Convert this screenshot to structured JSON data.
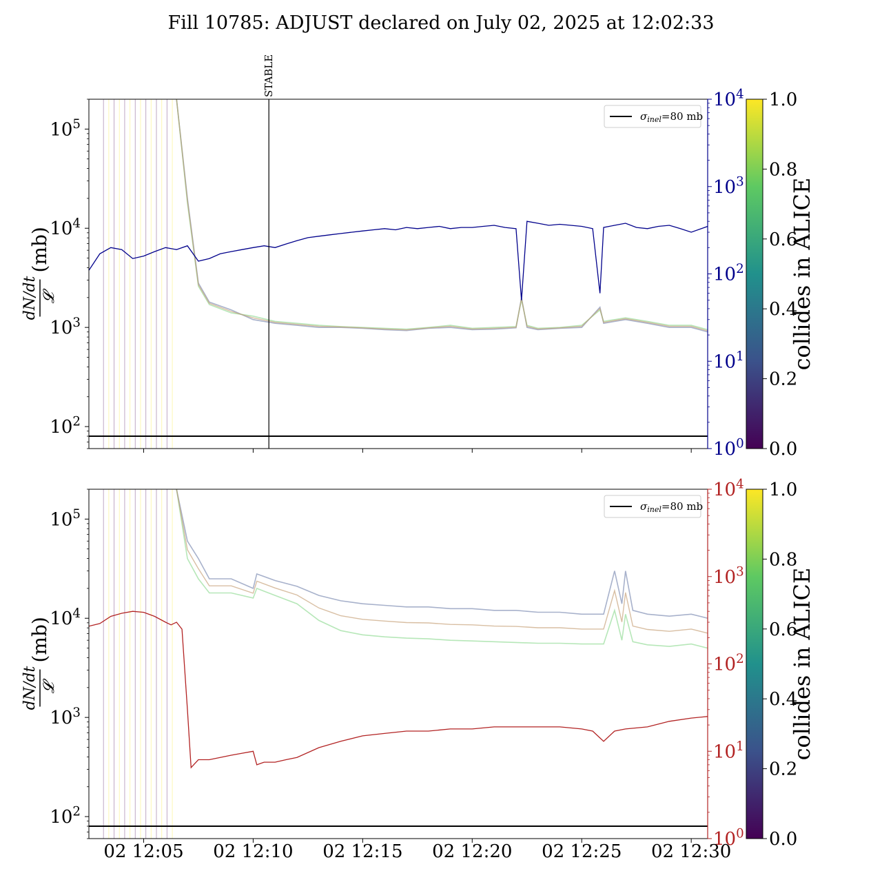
{
  "title": "Fill 10785: ADJUST declared on July 02, 2025 at 12:02:33",
  "colors": {
    "blue_series": "#00008b",
    "red_series": "#b22222",
    "reference_line": "#000000",
    "colormap": [
      "#440154",
      "#3b528b",
      "#21918c",
      "#5ec962",
      "#fde725"
    ]
  },
  "chart_data": [
    {
      "type": "line",
      "xlabel": "",
      "ylabel_left": "dN/dt / 𝓛 (mb)",
      "ylabel_left_numerator": "dN/dt",
      "ylabel_left_denominator": "𝓛",
      "ylabel_left_unit": "(mb)",
      "yscale_left": "log",
      "ylim_left": [
        60,
        200000
      ],
      "yticks_left": [
        {
          "value": 100,
          "label": "10",
          "exp": "2"
        },
        {
          "value": 1000,
          "label": "10",
          "exp": "3"
        },
        {
          "value": 10000,
          "label": "10",
          "exp": "4"
        },
        {
          "value": 100000,
          "label": "10",
          "exp": "5"
        }
      ],
      "yscale_right": "log",
      "ylim_right": [
        1,
        10000
      ],
      "yticks_right": [
        {
          "value": 1,
          "label": "10",
          "exp": "0"
        },
        {
          "value": 10,
          "label": "10",
          "exp": "1"
        },
        {
          "value": 100,
          "label": "10",
          "exp": "2"
        },
        {
          "value": 1000,
          "label": "10",
          "exp": "3"
        },
        {
          "value": 10000,
          "label": "10",
          "exp": "4"
        }
      ],
      "right_axis_color": "#00008b",
      "xlim": [
        "02 12:02:30",
        "02 12:30:45"
      ],
      "xticks": [
        "02 12:05",
        "02 12:10",
        "02 12:15",
        "02 12:20",
        "02 12:25",
        "02 12:30"
      ],
      "show_xtick_labels": false,
      "annotation": {
        "label": "STABLE",
        "x": "02 12:10:43"
      },
      "legend": {
        "placement": "top-right",
        "entries": [
          {
            "name": "σ",
            "subscript": "inel",
            "suffix": "=80 mb"
          }
        ]
      },
      "reference_line_value": 80,
      "colorbar": {
        "label": "collides in ALICE",
        "ticks": [
          "0.0",
          "0.2",
          "0.4",
          "0.6",
          "0.8",
          "1.0"
        ]
      },
      "right_series": {
        "axis": "right",
        "x": [
          "12:02:30",
          "12:03:00",
          "12:03:30",
          "12:04:00",
          "12:04:30",
          "12:05:00",
          "12:05:30",
          "12:06:00",
          "12:06:30",
          "12:07:00",
          "12:07:30",
          "12:08:00",
          "12:08:30",
          "12:09:00",
          "12:09:30",
          "12:10:00",
          "12:10:30",
          "12:11:00",
          "12:11:30",
          "12:12:00",
          "12:12:30",
          "12:13:00",
          "12:13:30",
          "12:14:00",
          "12:14:30",
          "12:15:00",
          "12:15:30",
          "12:16:00",
          "12:16:30",
          "12:17:00",
          "12:17:30",
          "12:18:00",
          "12:18:30",
          "12:19:00",
          "12:19:30",
          "12:20:00",
          "12:20:30",
          "12:21:00",
          "12:21:30",
          "12:22:00",
          "12:22:15",
          "12:22:30",
          "12:23:00",
          "12:23:30",
          "12:24:00",
          "12:24:30",
          "12:25:00",
          "12:25:30",
          "12:25:50",
          "12:26:00",
          "12:26:30",
          "12:27:00",
          "12:27:30",
          "12:28:00",
          "12:28:30",
          "12:29:00",
          "12:29:30",
          "12:30:00",
          "12:30:45"
        ],
        "y": [
          110,
          170,
          200,
          190,
          150,
          160,
          180,
          200,
          190,
          210,
          140,
          150,
          170,
          180,
          190,
          200,
          210,
          200,
          220,
          240,
          260,
          270,
          280,
          290,
          300,
          310,
          320,
          330,
          320,
          340,
          330,
          340,
          350,
          330,
          340,
          340,
          350,
          360,
          340,
          330,
          50,
          400,
          380,
          360,
          370,
          360,
          350,
          330,
          60,
          340,
          360,
          380,
          340,
          330,
          350,
          360,
          330,
          300,
          350
        ]
      },
      "colored_series": [
        {
          "color_value": 0.15,
          "x": [
            "12:06:30",
            "12:07:00",
            "12:07:30",
            "12:08:00",
            "12:09:00",
            "12:10:00",
            "12:11:00",
            "12:12:00",
            "12:13:00",
            "12:14:00",
            "12:15:00",
            "12:16:00",
            "12:17:00",
            "12:18:00",
            "12:19:00",
            "12:20:00",
            "12:21:00",
            "12:22:00",
            "12:22:15",
            "12:22:30",
            "12:23:00",
            "12:24:00",
            "12:25:00",
            "12:25:50",
            "12:26:00",
            "12:27:00",
            "12:28:00",
            "12:29:00",
            "12:30:00",
            "12:30:45"
          ],
          "y": [
            200000,
            20000,
            2800,
            1800,
            1500,
            1200,
            1100,
            1050,
            1000,
            1000,
            980,
            950,
            930,
            980,
            1000,
            950,
            960,
            990,
            2000,
            1000,
            950,
            980,
            1000,
            1600,
            1100,
            1200,
            1100,
            1000,
            1000,
            900
          ]
        },
        {
          "color_value": 0.85,
          "x": [
            "12:06:30",
            "12:07:00",
            "12:07:30",
            "12:08:00",
            "12:09:00",
            "12:10:00",
            "12:11:00",
            "12:12:00",
            "12:13:00",
            "12:14:00",
            "12:15:00",
            "12:16:00",
            "12:17:00",
            "12:18:00",
            "12:19:00",
            "12:20:00",
            "12:21:00",
            "12:22:00",
            "12:22:15",
            "12:22:30",
            "12:23:00",
            "12:24:00",
            "12:25:00",
            "12:25:50",
            "12:26:00",
            "12:27:00",
            "12:28:00",
            "12:29:00",
            "12:30:00",
            "12:30:45"
          ],
          "y": [
            200000,
            18000,
            2600,
            1700,
            1400,
            1300,
            1150,
            1100,
            1050,
            1020,
            1000,
            980,
            960,
            1000,
            1050,
            980,
            1000,
            1020,
            1900,
            1050,
            980,
            1000,
            1050,
            1500,
            1150,
            1250,
            1150,
            1050,
            1050,
            950
          ]
        }
      ]
    },
    {
      "type": "line",
      "xlabel": "",
      "ylabel_left": "dN/dt / 𝓛 (mb)",
      "ylabel_left_numerator": "dN/dt",
      "ylabel_left_denominator": "𝓛",
      "ylabel_left_unit": "(mb)",
      "yscale_left": "log",
      "ylim_left": [
        60,
        200000
      ],
      "yticks_left": [
        {
          "value": 100,
          "label": "10",
          "exp": "2"
        },
        {
          "value": 1000,
          "label": "10",
          "exp": "3"
        },
        {
          "value": 10000,
          "label": "10",
          "exp": "4"
        },
        {
          "value": 100000,
          "label": "10",
          "exp": "5"
        }
      ],
      "yscale_right": "log",
      "ylim_right": [
        1,
        10000
      ],
      "yticks_right": [
        {
          "value": 1,
          "label": "10",
          "exp": "0"
        },
        {
          "value": 10,
          "label": "10",
          "exp": "1"
        },
        {
          "value": 100,
          "label": "10",
          "exp": "2"
        },
        {
          "value": 1000,
          "label": "10",
          "exp": "3"
        },
        {
          "value": 10000,
          "label": "10",
          "exp": "4"
        }
      ],
      "right_axis_color": "#b22222",
      "xlim": [
        "02 12:02:30",
        "02 12:30:45"
      ],
      "xticks": [
        "02 12:05",
        "02 12:10",
        "02 12:15",
        "02 12:20",
        "02 12:25",
        "02 12:30"
      ],
      "show_xtick_labels": true,
      "legend": {
        "placement": "top-right",
        "entries": [
          {
            "name": "σ",
            "subscript": "inel",
            "suffix": "=80 mb"
          }
        ]
      },
      "reference_line_value": 80,
      "colorbar": {
        "label": "collides in ALICE",
        "ticks": [
          "0.0",
          "0.2",
          "0.4",
          "0.6",
          "0.8",
          "1.0"
        ]
      },
      "right_series": {
        "axis": "right",
        "x": [
          "12:02:30",
          "12:03:00",
          "12:03:30",
          "12:04:00",
          "12:04:30",
          "12:05:00",
          "12:05:30",
          "12:06:00",
          "12:06:15",
          "12:06:30",
          "12:06:45",
          "12:07:00",
          "12:07:10",
          "12:07:30",
          "12:08:00",
          "12:08:30",
          "12:09:00",
          "12:09:30",
          "12:10:00",
          "12:10:10",
          "12:10:30",
          "12:11:00",
          "12:11:30",
          "12:12:00",
          "12:13:00",
          "12:14:00",
          "12:15:00",
          "12:16:00",
          "12:17:00",
          "12:18:00",
          "12:19:00",
          "12:20:00",
          "12:21:00",
          "12:22:00",
          "12:23:00",
          "12:24:00",
          "12:25:00",
          "12:25:30",
          "12:26:00",
          "12:26:30",
          "12:27:00",
          "12:28:00",
          "12:29:00",
          "12:30:00",
          "12:30:45"
        ],
        "y": [
          270,
          290,
          350,
          380,
          400,
          390,
          350,
          300,
          280,
          300,
          250,
          30,
          6.5,
          8,
          8,
          8.5,
          9,
          9.5,
          10,
          7,
          7.5,
          7.5,
          8,
          8.5,
          11,
          13,
          15,
          16,
          17,
          17,
          18,
          18,
          19,
          19,
          19,
          19,
          18,
          17,
          13,
          17,
          18,
          19,
          22,
          24,
          25
        ]
      },
      "colored_series": [
        {
          "color_value": 0.15,
          "x": [
            "12:06:30",
            "12:07:00",
            "12:07:30",
            "12:08:00",
            "12:09:00",
            "12:10:00",
            "12:10:10",
            "12:11:00",
            "12:12:00",
            "12:13:00",
            "12:14:00",
            "12:15:00",
            "12:16:00",
            "12:17:00",
            "12:18:00",
            "12:19:00",
            "12:20:00",
            "12:21:00",
            "12:22:00",
            "12:23:00",
            "12:24:00",
            "12:25:00",
            "12:26:00",
            "12:26:30",
            "12:26:50",
            "12:27:00",
            "12:27:20",
            "12:28:00",
            "12:29:00",
            "12:30:00",
            "12:30:45"
          ],
          "y": [
            200000,
            60000,
            40000,
            25000,
            25000,
            20000,
            28000,
            24000,
            21000,
            17000,
            15000,
            14000,
            13500,
            13000,
            13000,
            12500,
            12500,
            12000,
            12000,
            11500,
            11500,
            11000,
            11000,
            30000,
            14000,
            30000,
            12000,
            11000,
            10500,
            11000,
            10000
          ]
        },
        {
          "color_value": 0.85,
          "x": [
            "12:06:30",
            "12:07:00",
            "12:07:30",
            "12:08:00",
            "12:09:00",
            "12:10:00",
            "12:10:10",
            "12:11:00",
            "12:12:00",
            "12:13:00",
            "12:14:00",
            "12:15:00",
            "12:16:00",
            "12:17:00",
            "12:18:00",
            "12:19:00",
            "12:20:00",
            "12:21:00",
            "12:22:00",
            "12:23:00",
            "12:24:00",
            "12:25:00",
            "12:26:00",
            "12:26:30",
            "12:26:50",
            "12:27:00",
            "12:27:20",
            "12:28:00",
            "12:29:00",
            "12:30:00",
            "12:30:45"
          ],
          "y": [
            200000,
            40000,
            25000,
            18000,
            18000,
            16000,
            20000,
            17000,
            14000,
            9500,
            7500,
            6800,
            6500,
            6300,
            6200,
            6000,
            5900,
            5800,
            5700,
            5600,
            5600,
            5500,
            5500,
            12000,
            6000,
            11000,
            5800,
            5400,
            5200,
            5500,
            5000
          ]
        }
      ]
    }
  ]
}
